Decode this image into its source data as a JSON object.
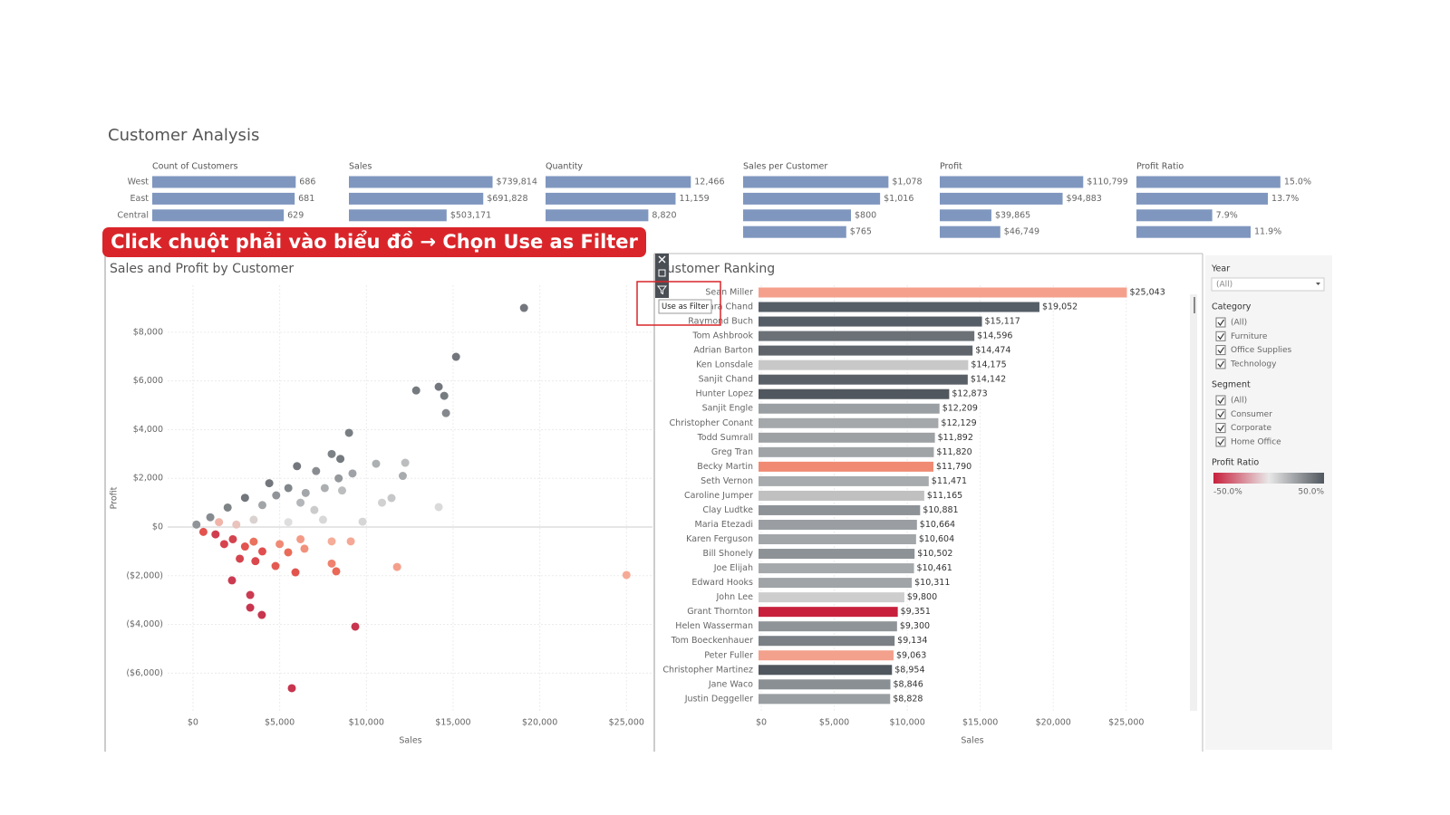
{
  "title": "Customer Analysis",
  "banner": "Click chuột phải vào biểu đồ → Chọn Use as Filter",
  "tooltip": "Use as Filter",
  "regions": [
    "West",
    "East",
    "Central",
    null
  ],
  "chart_data": [
    {
      "type": "hbar",
      "title": "Count of Customers",
      "values": [
        686,
        681,
        629
      ],
      "xlim": [
        0,
        780
      ],
      "color": "#7f97bf"
    },
    {
      "type": "hbar",
      "title": "Sales",
      "values": [
        739814,
        691828,
        503171
      ],
      "value_labels": [
        "$739,814",
        "$691,828",
        "$503,171"
      ],
      "xlim": [
        0,
        840000
      ],
      "color": "#7f97bf"
    },
    {
      "type": "hbar",
      "title": "Quantity",
      "values": [
        12466,
        11159,
        8820
      ],
      "value_labels": [
        "12,466",
        "11,159",
        "8,820"
      ],
      "xlim": [
        0,
        14000
      ],
      "color": "#7f97bf"
    },
    {
      "type": "hbar",
      "title": "Sales per Customer",
      "values": [
        1078,
        1016,
        800,
        765
      ],
      "value_labels": [
        "$1,078",
        "$1,016",
        "$800",
        "$765"
      ],
      "xlim": [
        0,
        1210
      ],
      "color": "#7f97bf"
    },
    {
      "type": "hbar",
      "title": "Profit",
      "values": [
        110799,
        94883,
        39865,
        46749
      ],
      "value_labels": [
        "$110,799",
        "$94,883",
        "$39,865",
        "$46,749"
      ],
      "xlim": [
        0,
        126000
      ],
      "color": "#7f97bf"
    },
    {
      "type": "hbar",
      "title": "Profit Ratio",
      "values": [
        15,
        13.7,
        7.9,
        11.9
      ],
      "value_labels": [
        "15.0%",
        "13.7%",
        "7.9%",
        "11.9%"
      ],
      "xlim": [
        0,
        17
      ],
      "color": "#7f97bf"
    },
    {
      "type": "scatter",
      "title": "Sales and Profit by Customer",
      "x_label": "Sales",
      "y_label": "Profit",
      "grid": true,
      "xlim": [
        -1460,
        26500
      ],
      "ylim": [
        -7550,
        9930
      ],
      "xticks": [
        {
          "value": 0,
          "label": "$0"
        },
        {
          "value": 5000,
          "label": "$5,000"
        },
        {
          "value": 10000,
          "label": "$10,000"
        },
        {
          "value": 15000,
          "label": "$15,000"
        },
        {
          "value": 20000,
          "label": "$20,000"
        },
        {
          "value": 25000,
          "label": "$25,000"
        }
      ],
      "yticks": [
        {
          "value": -6000,
          "label": "($6,000)"
        },
        {
          "value": -4000,
          "label": "($4,000)"
        },
        {
          "value": -2000,
          "label": "($2,000)"
        },
        {
          "value": 0,
          "label": "$0"
        },
        {
          "value": 2000,
          "label": "$2,000"
        },
        {
          "value": 4000,
          "label": "$4,000"
        },
        {
          "value": 6000,
          "label": "$6,000"
        },
        {
          "value": 8000,
          "label": "$8,000"
        }
      ],
      "x": [
        19090,
        15170,
        12870,
        14170,
        14490,
        14590,
        9000,
        25000,
        11770,
        9360,
        5700,
        3970,
        3300,
        3300,
        2250,
        14170,
        9780,
        12240,
        11450,
        10560,
        10900,
        12100,
        8260,
        8000,
        9100,
        8000,
        5910,
        4760,
        6430,
        5490,
        4000,
        3000,
        2300,
        1300,
        2700,
        3600,
        1800,
        3500,
        5000,
        6200,
        8500,
        8000,
        7100,
        6000,
        4400,
        5500,
        3000,
        2000,
        1000,
        200,
        4000,
        6500,
        7600,
        8600,
        7000,
        7500,
        5500,
        3500,
        2500,
        6200,
        9200,
        8400,
        4800,
        1500,
        600
      ],
      "values": [
        9000,
        6990,
        5610,
        5760,
        5390,
        4680,
        3870,
        -1970,
        -1640,
        -4090,
        -6620,
        -3610,
        -2790,
        -3310,
        -2190,
        820,
        220,
        2640,
        1190,
        2600,
        1000,
        2100,
        -1820,
        -1500,
        -590,
        -590,
        -1860,
        -1600,
        -890,
        -1040,
        -1000,
        -800,
        -500,
        -300,
        -1300,
        -1400,
        -700,
        -600,
        -700,
        -500,
        2800,
        3000,
        2300,
        2500,
        1800,
        1600,
        1200,
        800,
        400,
        100,
        900,
        1400,
        1600,
        1500,
        700,
        300,
        200,
        300,
        100,
        1000,
        2200,
        2000,
        1300,
        200,
        -200
      ],
      "colors": [
        "#6b7076",
        "#6b7076",
        "#6e7378",
        "#6b7076",
        "#70757a",
        "#7e8287",
        "#72777c",
        "#f5a590",
        "#f39a84",
        "#c42a45",
        "#c42a45",
        "#c42a45",
        "#c83048",
        "#c42a45",
        "#c83048",
        "#d8d8d8",
        "#d4d4d4",
        "#b7b9bb",
        "#c3c4c5",
        "#a9acae",
        "#cfcfcf",
        "#a3a6a9",
        "#e8604e",
        "#ee7a66",
        "#f3a38f",
        "#f4a894",
        "#e04a45",
        "#e25048",
        "#f08a74",
        "#e9634f",
        "#df4444",
        "#e24a46",
        "#d23a45",
        "#cc3446",
        "#d23a45",
        "#d83e45",
        "#d43a45",
        "#ea6a56",
        "#ef8470",
        "#f2957f",
        "#6e7378",
        "#767b80",
        "#83878b",
        "#6b7076",
        "#6b7076",
        "#7a7f84",
        "#6b7076",
        "#777c80",
        "#80858a",
        "#8a8e92",
        "#9da0a3",
        "#9fa2a5",
        "#a8abad",
        "#b7b9bb",
        "#c8c8c8",
        "#d6d6d6",
        "#dcdcdc",
        "#d8d0ce",
        "#e8c0b8",
        "#b0b3b5",
        "#9a9ea2",
        "#8e9296",
        "#8a8e92",
        "#f0b0a4",
        "#e24a46"
      ]
    },
    {
      "type": "hbar",
      "title": "Customer Ranking",
      "x_label": "Sales",
      "grid": true,
      "xlim": [
        0,
        28800
      ],
      "xticks": [
        {
          "value": 0,
          "label": "$0"
        },
        {
          "value": 5000,
          "label": "$5,000"
        },
        {
          "value": 10000,
          "label": "$10,000"
        },
        {
          "value": 15000,
          "label": "$15,000"
        },
        {
          "value": 20000,
          "label": "$20,000"
        },
        {
          "value": 25000,
          "label": "$25,000"
        }
      ],
      "categories": [
        "Sean Miller",
        "Tamara Chand",
        "Raymond Buch",
        "Tom Ashbrook",
        "Adrian Barton",
        "Ken Lonsdale",
        "Sanjit Chand",
        "Hunter Lopez",
        "Sanjit Engle",
        "Christopher Conant",
        "Todd Sumrall",
        "Greg Tran",
        "Becky Martin",
        "Seth Vernon",
        "Caroline Jumper",
        "Clay Ludtke",
        "Maria Etezadi",
        "Karen Ferguson",
        "Bill Shonely",
        "Joe Elijah",
        "Edward Hooks",
        "John Lee",
        "Grant Thornton",
        "Helen Wasserman",
        "Tom Boeckenhauer",
        "Peter Fuller",
        "Christopher Martinez",
        "Jane Waco",
        "Justin Deggeller"
      ],
      "values": [
        25043,
        19052,
        15117,
        14596,
        14474,
        14175,
        14142,
        12873,
        12209,
        12129,
        11892,
        11820,
        11790,
        11471,
        11165,
        10881,
        10664,
        10604,
        10502,
        10461,
        10311,
        9800,
        9351,
        9300,
        9134,
        9063,
        8954,
        8846,
        8828
      ],
      "value_labels": [
        "$25,043",
        "$19,052",
        "$15,117",
        "$14,596",
        "$14,474",
        "$14,175",
        "$14,142",
        "$12,873",
        "$12,209",
        "$12,129",
        "$11,892",
        "$11,820",
        "$11,790",
        "$11,471",
        "$11,165",
        "$10,881",
        "$10,664",
        "$10,604",
        "$10,502",
        "$10,461",
        "$10,311",
        "$9,800",
        "$9,351",
        "$9,300",
        "$9,134",
        "$9,063",
        "$8,954",
        "$8,846",
        "$8,828"
      ],
      "colors": [
        "#f5a08c",
        "#555d66",
        "#555d66",
        "#6b7177",
        "#5e646a",
        "#c8c8c8",
        "#5a6067",
        "#50575e",
        "#9a9fa3",
        "#a4a8ab",
        "#9da1a4",
        "#a0a4a7",
        "#f08a72",
        "#a7abad",
        "#c0c0c0",
        "#8e9398",
        "#9a9ea2",
        "#a2a6a9",
        "#8d9296",
        "#a5a9ab",
        "#a0a4a7",
        "#cdcdcd",
        "#c8203c",
        "#8f9499",
        "#7a8085",
        "#f3a08c",
        "#50575e",
        "#8a8f94",
        "#999ea2"
      ]
    }
  ],
  "filters": {
    "year": {
      "title": "Year",
      "value": "(All)"
    },
    "category": {
      "title": "Category",
      "options": [
        "(All)",
        "Furniture",
        "Office Supplies",
        "Technology"
      ]
    },
    "segment": {
      "title": "Segment",
      "options": [
        "(All)",
        "Consumer",
        "Corporate",
        "Home Office"
      ]
    },
    "profit_ratio": {
      "title": "Profit Ratio",
      "min_label": "-50.0%",
      "max_label": "50.0%"
    }
  }
}
